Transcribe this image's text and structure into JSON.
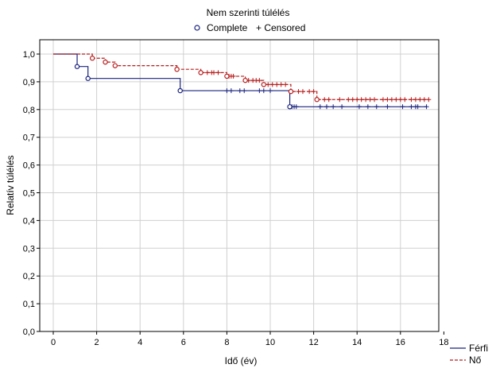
{
  "chart_data": {
    "type": "line",
    "title": "Nem szerinti túlélés",
    "marker_legend": {
      "complete": "Complete",
      "censored": "+ Censored"
    },
    "xlabel": "Idő (év)",
    "ylabel": "Relatív túlélés",
    "xlim": [
      -0.7,
      18
    ],
    "ylim": [
      0,
      1.05
    ],
    "x_ticks": [
      0,
      2,
      4,
      6,
      8,
      10,
      12,
      14,
      16,
      18
    ],
    "x_tick_labels": [
      "0",
      "2",
      "4",
      "6",
      "8",
      "10",
      "12",
      "14",
      "16",
      "18"
    ],
    "y_ticks": [
      0,
      0.1,
      0.2,
      0.3,
      0.4,
      0.5,
      0.6,
      0.7,
      0.8,
      0.9,
      1.0
    ],
    "y_tick_labels": [
      "0,0",
      "0,1",
      "0,2",
      "0,3",
      "0,4",
      "0,5",
      "0,6",
      "0,7",
      "0,8",
      "0,9",
      "1,0"
    ],
    "grid": true,
    "legend_position": "bottom-right",
    "series": [
      {
        "name": "Férfi",
        "color": "#1a237e",
        "dash": false,
        "step_x": [
          0,
          1.1,
          1.6,
          5.85,
          10.9,
          17.2
        ],
        "step_y": [
          1.0,
          0.955,
          0.912,
          0.868,
          0.81,
          0.81
        ],
        "complete_events": [
          [
            1.1,
            0.955
          ],
          [
            1.6,
            0.912
          ],
          [
            5.85,
            0.868
          ],
          [
            10.9,
            0.81
          ]
        ],
        "censored": [
          [
            8.0,
            0.868
          ],
          [
            8.2,
            0.868
          ],
          [
            8.6,
            0.868
          ],
          [
            8.8,
            0.868
          ],
          [
            9.5,
            0.868
          ],
          [
            9.7,
            0.868
          ],
          [
            10.0,
            0.868
          ],
          [
            11.0,
            0.81
          ],
          [
            11.1,
            0.81
          ],
          [
            11.2,
            0.81
          ],
          [
            12.3,
            0.81
          ],
          [
            12.6,
            0.81
          ],
          [
            12.9,
            0.81
          ],
          [
            13.3,
            0.81
          ],
          [
            14.1,
            0.81
          ],
          [
            14.5,
            0.81
          ],
          [
            14.9,
            0.81
          ],
          [
            15.4,
            0.81
          ],
          [
            16.1,
            0.81
          ],
          [
            16.5,
            0.81
          ],
          [
            16.7,
            0.81
          ],
          [
            16.8,
            0.81
          ],
          [
            17.2,
            0.81
          ]
        ]
      },
      {
        "name": "Nő",
        "color": "#b71c1c",
        "dash": true,
        "step_x": [
          0,
          1.8,
          2.4,
          2.85,
          5.7,
          6.8,
          8.0,
          8.85,
          9.7,
          10.95,
          12.15,
          17.3
        ],
        "step_y": [
          1.0,
          0.985,
          0.971,
          0.958,
          0.945,
          0.933,
          0.92,
          0.905,
          0.89,
          0.865,
          0.836,
          0.836
        ],
        "complete_events": [
          [
            1.8,
            0.985
          ],
          [
            2.4,
            0.971
          ],
          [
            2.85,
            0.958
          ],
          [
            5.7,
            0.945
          ],
          [
            6.8,
            0.933
          ],
          [
            8.0,
            0.92
          ],
          [
            8.85,
            0.905
          ],
          [
            9.7,
            0.89
          ],
          [
            10.95,
            0.865
          ],
          [
            12.15,
            0.836
          ]
        ],
        "censored": [
          [
            7.1,
            0.933
          ],
          [
            7.3,
            0.933
          ],
          [
            7.4,
            0.933
          ],
          [
            7.6,
            0.933
          ],
          [
            8.1,
            0.92
          ],
          [
            8.2,
            0.92
          ],
          [
            8.3,
            0.92
          ],
          [
            9.0,
            0.905
          ],
          [
            9.2,
            0.905
          ],
          [
            9.35,
            0.905
          ],
          [
            9.5,
            0.905
          ],
          [
            9.9,
            0.89
          ],
          [
            10.1,
            0.89
          ],
          [
            10.3,
            0.89
          ],
          [
            10.5,
            0.89
          ],
          [
            10.7,
            0.89
          ],
          [
            11.3,
            0.865
          ],
          [
            11.5,
            0.865
          ],
          [
            11.8,
            0.865
          ],
          [
            12.0,
            0.865
          ],
          [
            12.5,
            0.836
          ],
          [
            12.7,
            0.836
          ],
          [
            13.2,
            0.836
          ],
          [
            13.6,
            0.836
          ],
          [
            13.8,
            0.836
          ],
          [
            14.0,
            0.836
          ],
          [
            14.2,
            0.836
          ],
          [
            14.4,
            0.836
          ],
          [
            14.6,
            0.836
          ],
          [
            14.8,
            0.836
          ],
          [
            15.2,
            0.836
          ],
          [
            15.4,
            0.836
          ],
          [
            15.6,
            0.836
          ],
          [
            15.8,
            0.836
          ],
          [
            16.0,
            0.836
          ],
          [
            16.2,
            0.836
          ],
          [
            16.5,
            0.836
          ],
          [
            16.7,
            0.836
          ],
          [
            16.9,
            0.836
          ],
          [
            17.1,
            0.836
          ],
          [
            17.3,
            0.836
          ]
        ]
      }
    ]
  }
}
